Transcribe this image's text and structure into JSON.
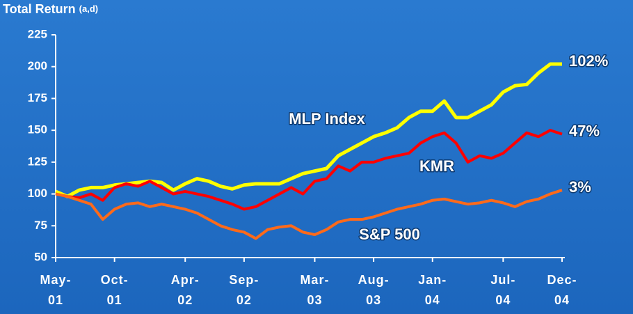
{
  "chart_data": {
    "type": "line",
    "title": "Total Return",
    "title_note": "(a,d)",
    "categories": [
      "May-01",
      null,
      null,
      null,
      null,
      "Oct-01",
      null,
      null,
      null,
      null,
      null,
      "Apr-02",
      null,
      null,
      null,
      null,
      "Sep-02",
      null,
      null,
      null,
      null,
      null,
      "Mar-03",
      null,
      null,
      null,
      null,
      "Aug-03",
      null,
      null,
      null,
      null,
      "Jan-04",
      null,
      null,
      null,
      null,
      null,
      "Jul-04",
      null,
      null,
      null,
      null,
      "Dec-04"
    ],
    "ylim": [
      50,
      225
    ],
    "yticks": [
      50,
      75,
      100,
      125,
      150,
      175,
      200,
      225
    ],
    "series": [
      {
        "name": "MLP Index",
        "color": "#ffff00",
        "end_label": "102%",
        "values": [
          102,
          98,
          103,
          105,
          105,
          107,
          108,
          109,
          110,
          109,
          103,
          108,
          112,
          110,
          106,
          104,
          107,
          108,
          108,
          108,
          112,
          116,
          118,
          120,
          130,
          135,
          140,
          145,
          148,
          152,
          160,
          165,
          165,
          173,
          160,
          160,
          165,
          170,
          180,
          185,
          186,
          195,
          202,
          202
        ]
      },
      {
        "name": "KMR",
        "color": "#ff0000",
        "end_label": "47%",
        "values": [
          100,
          98,
          97,
          100,
          95,
          105,
          108,
          106,
          110,
          105,
          100,
          102,
          100,
          98,
          95,
          92,
          88,
          90,
          95,
          100,
          105,
          100,
          110,
          112,
          122,
          118,
          125,
          125,
          128,
          130,
          132,
          140,
          145,
          148,
          140,
          125,
          130,
          128,
          132,
          140,
          148,
          145,
          150,
          147
        ]
      },
      {
        "name": "S&P 500",
        "color": "#ff6a1a",
        "end_label": "3%",
        "values": [
          100,
          98,
          95,
          92,
          80,
          88,
          92,
          93,
          90,
          92,
          90,
          88,
          85,
          80,
          75,
          72,
          70,
          65,
          72,
          74,
          75,
          70,
          68,
          72,
          78,
          80,
          80,
          82,
          85,
          88,
          90,
          92,
          95,
          96,
          94,
          92,
          93,
          95,
          93,
          90,
          94,
          96,
          100,
          103
        ]
      }
    ]
  }
}
